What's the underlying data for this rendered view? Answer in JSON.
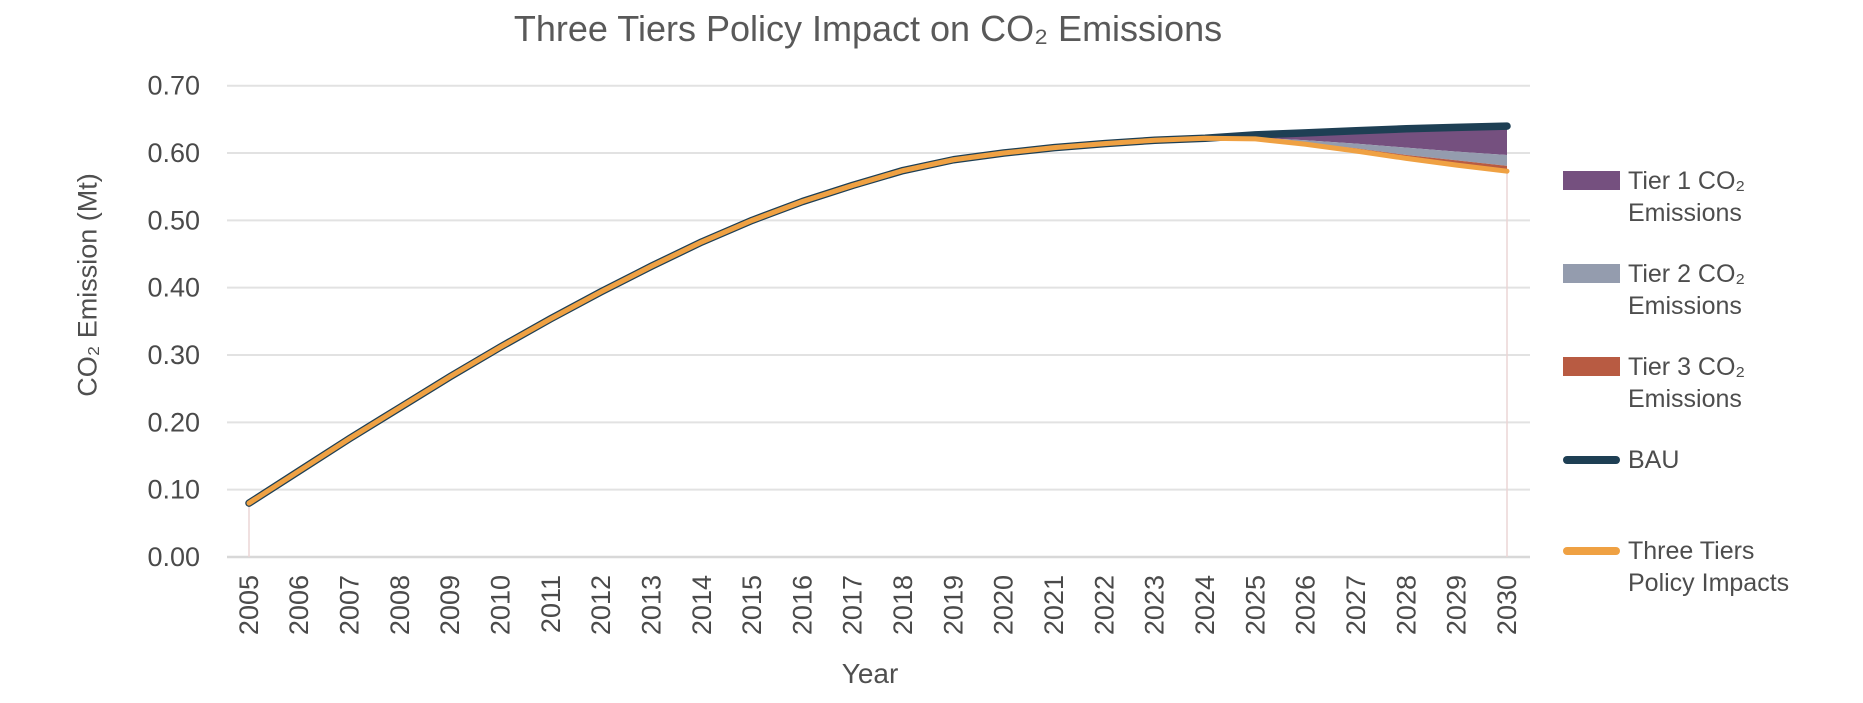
{
  "title": "Three Tiers Policy Impact on CO₂ Emissions",
  "axes": {
    "x_label": "Year",
    "y_label": "CO₂ Emission (Mt)",
    "y_ticks": [
      "0.00",
      "0.10",
      "0.20",
      "0.30",
      "0.40",
      "0.50",
      "0.60",
      "0.70"
    ],
    "x_ticks": [
      2005,
      2006,
      2007,
      2008,
      2009,
      2010,
      2011,
      2012,
      2013,
      2014,
      2015,
      2016,
      2017,
      2018,
      2019,
      2020,
      2021,
      2022,
      2023,
      2024,
      2025,
      2026,
      2027,
      2028,
      2029,
      2030
    ]
  },
  "legend": [
    {
      "label": "Tier 1 CO₂ Emissions",
      "label_lines": [
        "Tier 1 CO₂",
        "Emissions"
      ],
      "swatch": "area",
      "color": "#75507F"
    },
    {
      "label": "Tier 2 CO₂ Emissions",
      "label_lines": [
        "Tier 2 CO₂",
        "Emissions"
      ],
      "swatch": "area",
      "color": "#949CAE"
    },
    {
      "label": "Tier 3 CO₂ Emissions",
      "label_lines": [
        "Tier 3 CO₂",
        "Emissions"
      ],
      "swatch": "area",
      "color": "#B85B42"
    },
    {
      "label": "BAU",
      "label_lines": [
        "BAU"
      ],
      "swatch": "line",
      "color": "#1E3F54"
    },
    {
      "label": "Three Tiers Policy Impacts",
      "label_lines": [
        "Three Tiers",
        "Policy Impacts"
      ],
      "swatch": "line",
      "color": "#EFA143"
    }
  ],
  "colors": {
    "tier1_band": "#75507F",
    "tier2_band": "#949CAE",
    "tier3_band": "#B85B42",
    "bau_line": "#1E3F54",
    "policy_line": "#EFA143",
    "gridline": "#E2E2E2",
    "baseline": "#D8D8D8",
    "marker_line": "#EBD5D5",
    "title_text": "#595959",
    "tick_text": "#4A4A4A"
  },
  "chart_data": {
    "type": "area",
    "title": "Three Tiers Policy Impact on CO₂ Emissions",
    "xlabel": "Year",
    "ylabel": "CO₂ Emission (Mt)",
    "xlim": [
      2005,
      2030
    ],
    "ylim": [
      0.0,
      0.7
    ],
    "grid": true,
    "legend_position": "right",
    "x": [
      2005,
      2006,
      2007,
      2008,
      2009,
      2010,
      2011,
      2012,
      2013,
      2014,
      2015,
      2016,
      2017,
      2018,
      2019,
      2020,
      2021,
      2022,
      2023,
      2024,
      2025,
      2026,
      2027,
      2028,
      2029,
      2030
    ],
    "series": [
      {
        "name": "BAU",
        "style": "line",
        "values": [
          0.08,
          0.128,
          0.176,
          0.222,
          0.268,
          0.312,
          0.354,
          0.394,
          0.432,
          0.468,
          0.5,
          0.528,
          0.552,
          0.574,
          0.59,
          0.6,
          0.608,
          0.614,
          0.619,
          0.622,
          0.627,
          0.63,
          0.633,
          0.636,
          0.638,
          0.64
        ]
      },
      {
        "name": "Three Tiers Policy Impacts",
        "style": "line",
        "values": [
          0.08,
          0.128,
          0.176,
          0.222,
          0.268,
          0.312,
          0.354,
          0.394,
          0.432,
          0.468,
          0.5,
          0.528,
          0.552,
          0.574,
          0.59,
          0.6,
          0.608,
          0.614,
          0.619,
          0.622,
          0.621,
          0.613,
          0.603,
          0.592,
          0.582,
          0.573
        ]
      },
      {
        "name": "Tier 1 CO₂ Emissions",
        "style": "band-reduction",
        "values": [
          0,
          0,
          0,
          0,
          0,
          0,
          0,
          0,
          0,
          0,
          0,
          0,
          0,
          0,
          0,
          0,
          0,
          0,
          0,
          0,
          0.004,
          0.011,
          0.019,
          0.028,
          0.036,
          0.043
        ]
      },
      {
        "name": "Tier 2 CO₂ Emissions",
        "style": "band-reduction",
        "values": [
          0,
          0,
          0,
          0,
          0,
          0,
          0,
          0,
          0,
          0,
          0,
          0,
          0,
          0,
          0,
          0,
          0,
          0,
          0,
          0,
          0.001,
          0.004,
          0.007,
          0.011,
          0.013,
          0.016
        ]
      },
      {
        "name": "Tier 3 CO₂ Emissions",
        "style": "band-reduction",
        "values": [
          0,
          0,
          0,
          0,
          0,
          0,
          0,
          0,
          0,
          0,
          0,
          0,
          0,
          0,
          0,
          0,
          0,
          0,
          0,
          0,
          0.001,
          0.002,
          0.004,
          0.005,
          0.007,
          0.008
        ]
      }
    ]
  }
}
